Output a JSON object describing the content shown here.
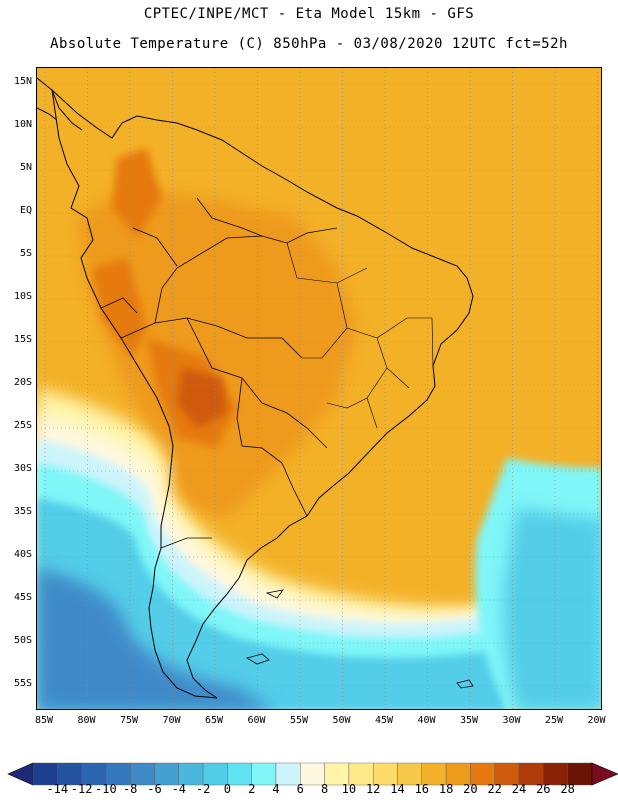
{
  "header": {
    "line1": "CPTEC/INPE/MCT -  Eta Model 15km - GFS",
    "line2": "Absolute Temperature (C) 850hPa - 03/08/2020 12UTC fct=52h"
  },
  "map": {
    "lat_labels": [
      "15N",
      "10N",
      "5N",
      "EQ",
      "5S",
      "10S",
      "15S",
      "20S",
      "25S",
      "30S",
      "35S",
      "40S",
      "45S",
      "50S",
      "55S"
    ],
    "lon_labels": [
      "85W",
      "80W",
      "75W",
      "70W",
      "65W",
      "60W",
      "55W",
      "50W",
      "45W",
      "40W",
      "35W",
      "30W",
      "25W",
      "20W"
    ]
  },
  "colorbar": {
    "labels": [
      "-14",
      "-12",
      "-10",
      "-8",
      "-6",
      "-4",
      "-2",
      "0",
      "2",
      "4",
      "6",
      "8",
      "10",
      "12",
      "14",
      "16",
      "18",
      "20",
      "22",
      "24",
      "26",
      "28"
    ],
    "colors": [
      "#1d3f8f",
      "#2453a0",
      "#2b66b0",
      "#3578be",
      "#3f8ac9",
      "#45a0d2",
      "#4bb7dd",
      "#52cde8",
      "#5fe3f2",
      "#7ff6f8",
      "#cdf4fb",
      "#fff8e0",
      "#fff4a8",
      "#ffe98a",
      "#fddc6a",
      "#f6c94a",
      "#f2b128",
      "#ee9a1a",
      "#e67a10",
      "#cf5a0c",
      "#b03a0a",
      "#8a2207",
      "#6a1405"
    ],
    "arrow_left": "#1e2a78",
    "arrow_right": "#7a0a22"
  }
}
